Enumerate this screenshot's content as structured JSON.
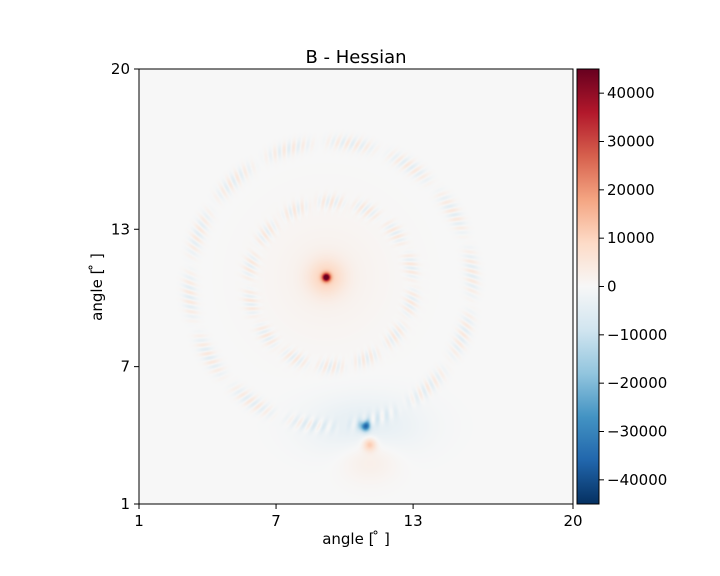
{
  "chart_data": {
    "type": "heatmap",
    "title": "B - Hessian",
    "xlabel": "angle [$^\\circ$]",
    "ylabel": "angle [$^\\circ$]",
    "xlabel_display": "angle [ ̊ ]",
    "ylabel_display": "angle [ ̊ ]",
    "xlim": [
      1,
      20
    ],
    "ylim": [
      1,
      20
    ],
    "x_ticks": [
      1,
      7,
      13,
      20
    ],
    "y_ticks": [
      1,
      7,
      13,
      20
    ],
    "colorbar": {
      "cmap": "RdBu_r",
      "vmin": -45000,
      "vmax": 45000,
      "ticks": [
        40000,
        30000,
        20000,
        10000,
        0,
        -10000,
        -20000,
        -30000,
        -40000
      ],
      "tick_labels": [
        "40000",
        "30000",
        "20000",
        "10000",
        "0",
        "−10000",
        "−20000",
        "−30000",
        "−40000"
      ]
    },
    "features": {
      "peak_max": {
        "x": 9.2,
        "y": 10.9,
        "value": 45000
      },
      "peak_min": {
        "x": 10.9,
        "y": 4.4,
        "value": -32000
      },
      "secondary_max": {
        "x": 11.1,
        "y": 3.6,
        "value": 12000
      },
      "ring_center": {
        "x": 9.4,
        "y": 10.6
      },
      "ring_radii": [
        3.6,
        6.2
      ],
      "ring_amplitude": 5000
    },
    "colors": {
      "zero": "#f7f7f7",
      "max": "#67001f",
      "min": "#053061"
    }
  }
}
